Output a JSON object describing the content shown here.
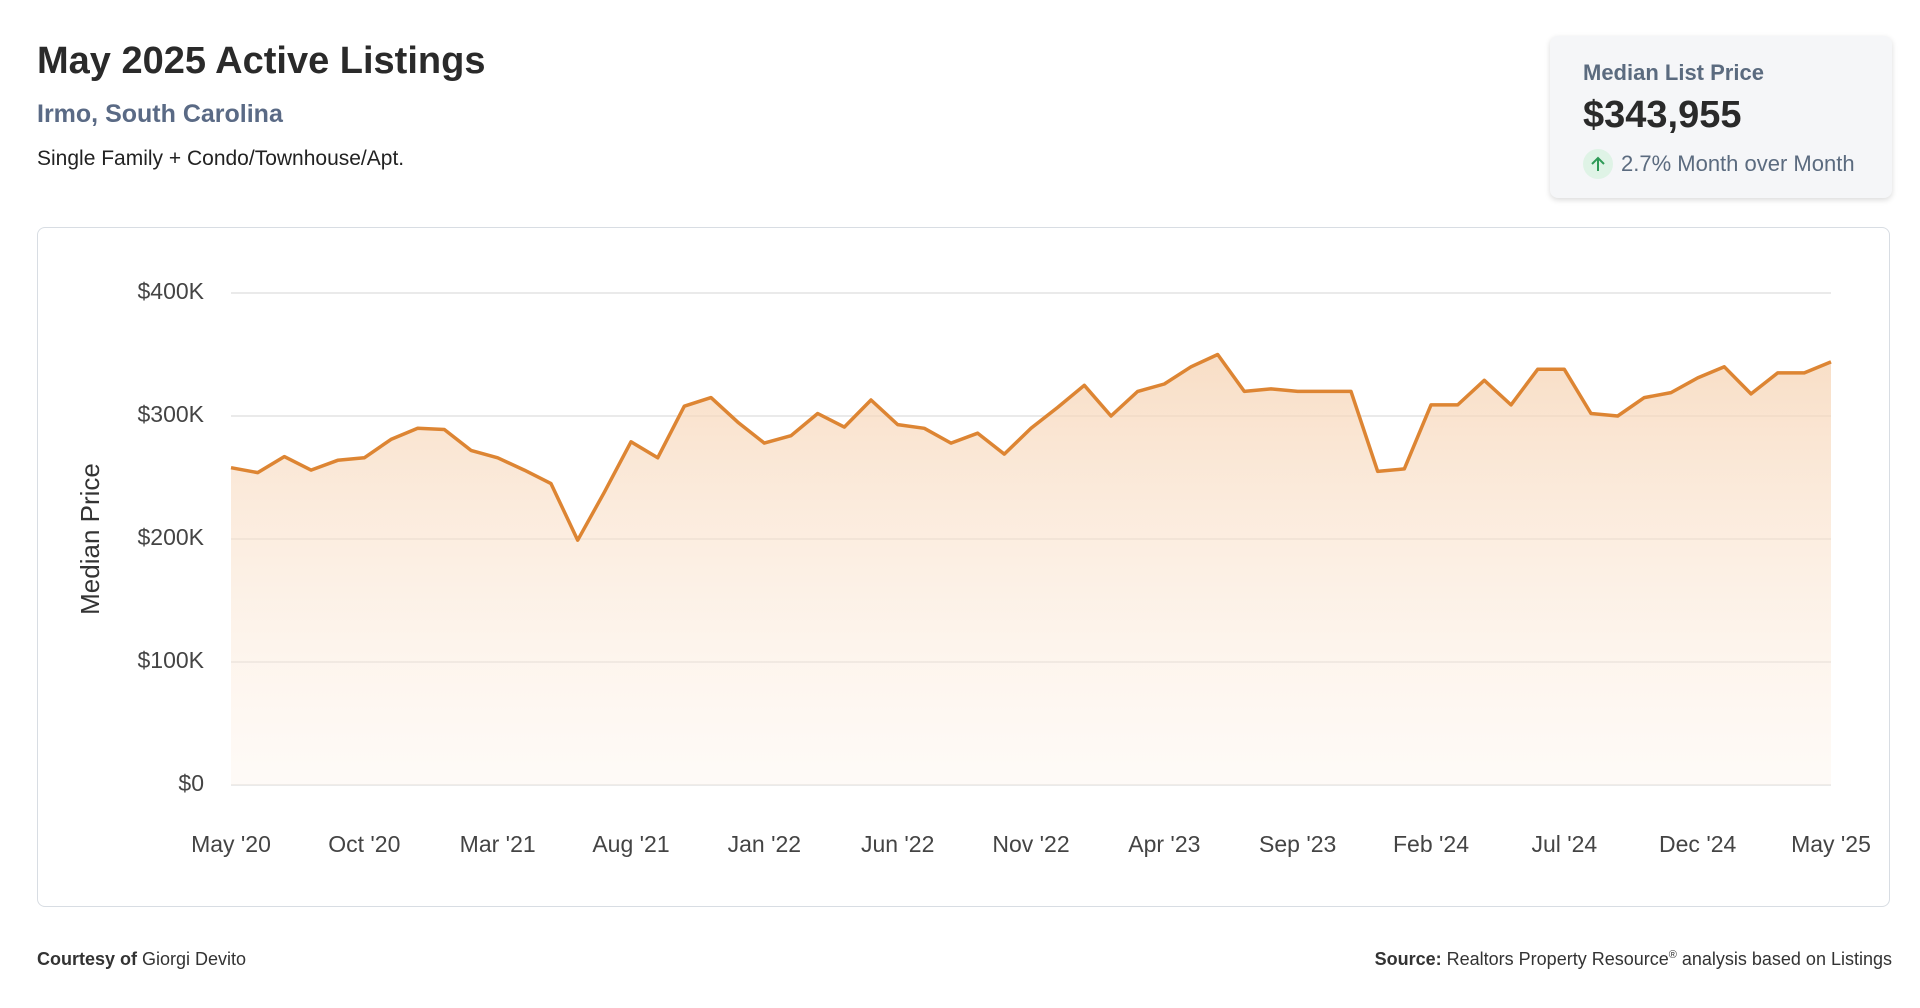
{
  "header": {
    "title": "May 2025 Active Listings",
    "location": "Irmo, South Carolina",
    "subtitle": "Single Family + Condo/Townhouse/Apt."
  },
  "card": {
    "label": "Median List Price",
    "value": "$343,955",
    "change": "2.7% Month over Month"
  },
  "chart_data": {
    "type": "area",
    "y_label": "Median Price",
    "categories": [
      "May '20",
      null,
      null,
      null,
      null,
      "Oct '20",
      null,
      null,
      null,
      null,
      "Mar '21",
      null,
      null,
      null,
      null,
      "Aug '21",
      null,
      null,
      null,
      null,
      "Jan '22",
      null,
      null,
      null,
      null,
      "Jun '22",
      null,
      null,
      null,
      null,
      "Nov '22",
      null,
      null,
      null,
      null,
      "Apr '23",
      null,
      null,
      null,
      null,
      "Sep '23",
      null,
      null,
      null,
      null,
      "Feb '24",
      null,
      null,
      null,
      null,
      "Jul '24",
      null,
      null,
      null,
      null,
      "Dec '24",
      null,
      null,
      null,
      null,
      "May '25"
    ],
    "series": [
      {
        "name": "Median List Price",
        "color": "#dd8533",
        "values": [
          258000,
          254000,
          267000,
          256000,
          264000,
          266000,
          281000,
          290000,
          289000,
          272000,
          266000,
          256000,
          245000,
          199000,
          238000,
          279000,
          266000,
          308000,
          315000,
          295000,
          278000,
          284000,
          302000,
          291000,
          313000,
          293000,
          290000,
          278000,
          286000,
          269000,
          290000,
          307000,
          325000,
          300000,
          320000,
          326000,
          340000,
          350000,
          320000,
          322000,
          320000,
          320000,
          320000,
          255000,
          257000,
          309000,
          309000,
          329000,
          309000,
          338000,
          338000,
          302000,
          300000,
          315000,
          319000,
          331000,
          340000,
          318000,
          335000,
          335000,
          343955
        ]
      }
    ],
    "ylim": [
      0,
      400000
    ],
    "yticks": [
      {
        "value": 0,
        "label": "$0"
      },
      {
        "value": 100000,
        "label": "$100K"
      },
      {
        "value": 200000,
        "label": "$200K"
      },
      {
        "value": 300000,
        "label": "$300K"
      },
      {
        "value": 400000,
        "label": "$400K"
      }
    ],
    "grid": true
  },
  "footer": {
    "courtesy_label": "Courtesy of",
    "courtesy_name": "Giorgi Devito",
    "source_label": "Source:",
    "source_text": "Realtors Property Resource",
    "source_mark": "®",
    "source_rest": "analysis based on Listings"
  }
}
